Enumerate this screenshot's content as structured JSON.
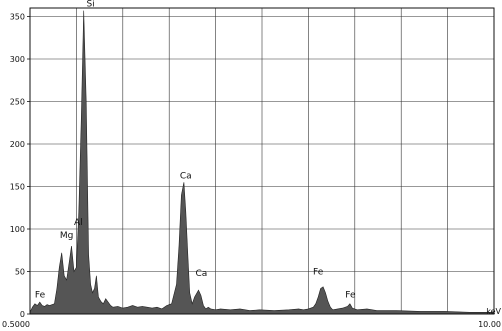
{
  "chart_data": {
    "type": "area",
    "title": "",
    "xlabel": "keV",
    "ylabel": "",
    "xlim": [
      0.5,
      10.0
    ],
    "ylim": [
      0,
      360
    ],
    "x_tick_labels": [
      "0.5000",
      "10.00"
    ],
    "y_ticks": [
      0,
      50,
      100,
      150,
      200,
      250,
      300,
      350
    ],
    "grid": true,
    "series": [
      {
        "x": [
          0.5,
          0.55,
          0.6,
          0.65,
          0.7,
          0.75,
          0.8,
          0.85,
          0.9,
          1.0,
          1.05,
          1.1,
          1.15,
          1.2,
          1.25,
          1.3,
          1.35,
          1.4,
          1.45,
          1.5,
          1.55,
          1.6,
          1.65,
          1.7,
          1.74,
          1.78,
          1.82,
          1.86,
          1.9,
          1.95,
          2.0,
          2.05,
          2.1,
          2.15,
          2.2,
          2.3,
          2.4,
          2.5,
          2.6,
          2.7,
          2.8,
          2.9,
          3.0,
          3.1,
          3.2,
          3.3,
          3.4,
          3.5,
          3.55,
          3.6,
          3.65,
          3.69,
          3.73,
          3.77,
          3.82,
          3.87,
          3.95,
          4.0,
          4.05,
          4.1,
          4.15,
          4.2,
          4.3,
          4.4,
          4.6,
          4.8,
          5.0,
          5.2,
          5.5,
          5.8,
          6.0,
          6.1,
          6.2,
          6.3,
          6.35,
          6.4,
          6.45,
          6.5,
          6.55,
          6.6,
          6.65,
          6.7,
          6.8,
          6.9,
          7.0,
          7.05,
          7.1,
          7.2,
          7.4,
          7.6,
          8.0,
          8.5,
          9.0,
          9.5,
          10.0
        ],
        "y": [
          2,
          8,
          12,
          10,
          14,
          10,
          9,
          11,
          10,
          12,
          30,
          55,
          72,
          45,
          40,
          60,
          80,
          50,
          55,
          120,
          230,
          357,
          250,
          70,
          35,
          25,
          30,
          45,
          20,
          15,
          12,
          18,
          14,
          10,
          8,
          9,
          7,
          8,
          10,
          8,
          9,
          8,
          7,
          8,
          6,
          10,
          12,
          35,
          80,
          140,
          155,
          120,
          70,
          25,
          12,
          20,
          28,
          22,
          10,
          6,
          8,
          6,
          5,
          6,
          5,
          6,
          4,
          5,
          4,
          5,
          6,
          5,
          6,
          8,
          12,
          20,
          30,
          32,
          25,
          15,
          8,
          5,
          6,
          7,
          9,
          12,
          7,
          5,
          6,
          4,
          4,
          3,
          3,
          2,
          2
        ]
      }
    ],
    "annotations": [
      {
        "label": "Si",
        "x": 1.74,
        "y": 357
      },
      {
        "label": "Ca",
        "x": 3.69,
        "y": 155
      },
      {
        "label": "Al",
        "x": 1.49,
        "y": 100
      },
      {
        "label": "Mg",
        "x": 1.25,
        "y": 85
      },
      {
        "label": "Ca",
        "x": 4.01,
        "y": 40
      },
      {
        "label": "Fe",
        "x": 6.4,
        "y": 42
      },
      {
        "label": "Fe",
        "x": 0.705,
        "y": 15
      },
      {
        "label": "Fe",
        "x": 7.06,
        "y": 15
      }
    ],
    "colors": {
      "fill": "#555555",
      "stroke": "#222222",
      "grid": "#333333"
    }
  }
}
